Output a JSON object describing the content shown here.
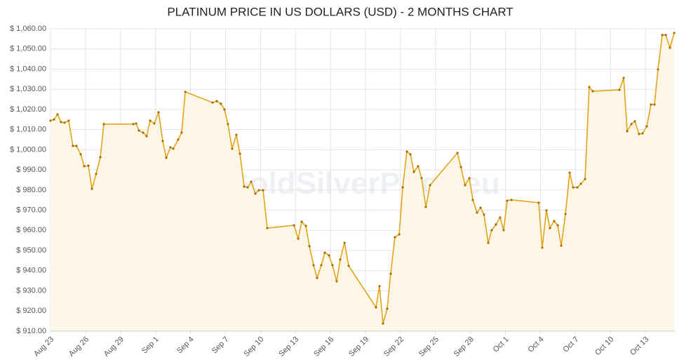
{
  "chart_data": {
    "type": "line",
    "title": "PLATINUM PRICE IN US DOLLARS (USD) - 2 MONTHS CHART",
    "watermark": "GoldSilverPrice.eu",
    "color": "#e5a31a",
    "fill": "#fcf6e6",
    "grid": true,
    "x": [
      0,
      0.3,
      0.6,
      0.9,
      1.2,
      1.56,
      1.92,
      2.22,
      2.59,
      2.89,
      3.25,
      3.55,
      3.91,
      4.27,
      4.57,
      7.1,
      7.34,
      7.58,
      7.94,
      8.24,
      8.54,
      8.9,
      9.26,
      9.62,
      9.92,
      10.28,
      10.52,
      10.94,
      11.24,
      11.55,
      13.89,
      14.25,
      14.61,
      14.91,
      15.21,
      15.57,
      15.93,
      16.24,
      16.6,
      16.9,
      17.2,
      17.56,
      17.86,
      18.22,
      18.58,
      20.87,
      21.23,
      21.53,
      21.89,
      22.19,
      22.55,
      22.85,
      23.21,
      23.51,
      23.87,
      24.17,
      24.53,
      24.83,
      25.2,
      25.56,
      27.9,
      28.2,
      28.5,
      28.86,
      29.16,
      29.52,
      29.89,
      30.19,
      30.55,
      30.85,
      31.15,
      31.51,
      31.81,
      32.17,
      32.53,
      34.88,
      35.18,
      35.54,
      35.9,
      36.2,
      36.56,
      36.86,
      37.16,
      37.52,
      37.82,
      38.18,
      38.54,
      38.84,
      39.14,
      39.51,
      41.85,
      42.15,
      42.51,
      42.81,
      43.17,
      43.48,
      43.78,
      44.14,
      44.5,
      44.8,
      45.16,
      45.46,
      45.82,
      46.18,
      46.48,
      48.77,
      49.13,
      49.43,
      49.79,
      50.09,
      50.45,
      50.75,
      51.11,
      51.47,
      51.77,
      52.07,
      52.44,
      52.74,
      53.1,
      53.46
    ],
    "values": [
      1014.4,
      1015,
      1017.5,
      1013.7,
      1013.4,
      1014.4,
      1001.9,
      1001.9,
      997.7,
      991.8,
      992.1,
      980.6,
      988,
      996.3,
      1012.7,
      1012.7,
      1013,
      1009.5,
      1008.5,
      1006.7,
      1014.4,
      1013,
      1018.6,
      1004.3,
      996,
      1001.2,
      1000.5,
      1005,
      1008.5,
      1028.7,
      1023.4,
      1024.1,
      1022.8,
      1020,
      1012.7,
      1000.5,
      1007.4,
      998,
      981.7,
      981.3,
      984.1,
      978.2,
      979.9,
      979.9,
      961.1,
      962.5,
      955.9,
      964.3,
      962.2,
      952.1,
      942.7,
      936.4,
      942.7,
      948.9,
      947.6,
      942.7,
      934.7,
      945.5,
      953.8,
      942.4,
      921.8,
      932.3,
      913.8,
      921.1,
      938.5,
      956.6,
      958,
      981.3,
      999.1,
      997.7,
      989,
      991.8,
      985.9,
      971.6,
      982.4,
      998.4,
      991.4,
      982.4,
      985.9,
      975.1,
      968.8,
      971.2,
      967.8,
      953.8,
      960.1,
      962.9,
      966.4,
      960.1,
      974.7,
      975.1,
      973.7,
      951.4,
      969.9,
      961.1,
      964.6,
      962.5,
      952.4,
      968.1,
      988.6,
      981.3,
      981.3,
      983.1,
      985.5,
      1031.1,
      1029,
      1029.7,
      1035.6,
      1009.2,
      1012.7,
      1014.1,
      1007.8,
      1008.1,
      1011.6,
      1022.4,
      1022.4,
      1039.8,
      1056.9,
      1056.9,
      1050.6,
      1057.9
    ],
    "xlim": [
      0,
      53.52
    ],
    "xticks": [
      {
        "value": 0,
        "label": "Aug 23"
      },
      {
        "value": 3,
        "label": "Aug 26"
      },
      {
        "value": 6,
        "label": "Aug 29"
      },
      {
        "value": 9,
        "label": "Sep 1"
      },
      {
        "value": 12,
        "label": "Sep 4"
      },
      {
        "value": 15,
        "label": "Sep 7"
      },
      {
        "value": 18,
        "label": "Sep 10"
      },
      {
        "value": 21,
        "label": "Sep 13"
      },
      {
        "value": 24,
        "label": "Sep 16"
      },
      {
        "value": 27,
        "label": "Sep 19"
      },
      {
        "value": 30,
        "label": "Sep 22"
      },
      {
        "value": 33,
        "label": "Sep 25"
      },
      {
        "value": 36,
        "label": "Sep 28"
      },
      {
        "value": 39,
        "label": "Oct 1"
      },
      {
        "value": 42,
        "label": "Oct 4"
      },
      {
        "value": 45,
        "label": "Oct 7"
      },
      {
        "value": 48,
        "label": "Oct 10"
      },
      {
        "value": 51,
        "label": "Oct 13"
      }
    ],
    "ylim": [
      910,
      1060
    ],
    "yticks": [
      {
        "value": 910,
        "label": "$ 910.00"
      },
      {
        "value": 920,
        "label": "$ 920.00"
      },
      {
        "value": 930,
        "label": "$ 930.00"
      },
      {
        "value": 940,
        "label": "$ 940.00"
      },
      {
        "value": 950,
        "label": "$ 950.00"
      },
      {
        "value": 960,
        "label": "$ 960.00"
      },
      {
        "value": 970,
        "label": "$ 970.00"
      },
      {
        "value": 980,
        "label": "$ 980.00"
      },
      {
        "value": 990,
        "label": "$ 990.00"
      },
      {
        "value": 1000,
        "label": "$ 1,000.00"
      },
      {
        "value": 1010,
        "label": "$ 1,010.00"
      },
      {
        "value": 1020,
        "label": "$ 1,020.00"
      },
      {
        "value": 1030,
        "label": "$ 1,030.00"
      },
      {
        "value": 1040,
        "label": "$ 1,040.00"
      },
      {
        "value": 1050,
        "label": "$ 1,050.00"
      },
      {
        "value": 1060,
        "label": "$ 1,060.00"
      }
    ]
  }
}
